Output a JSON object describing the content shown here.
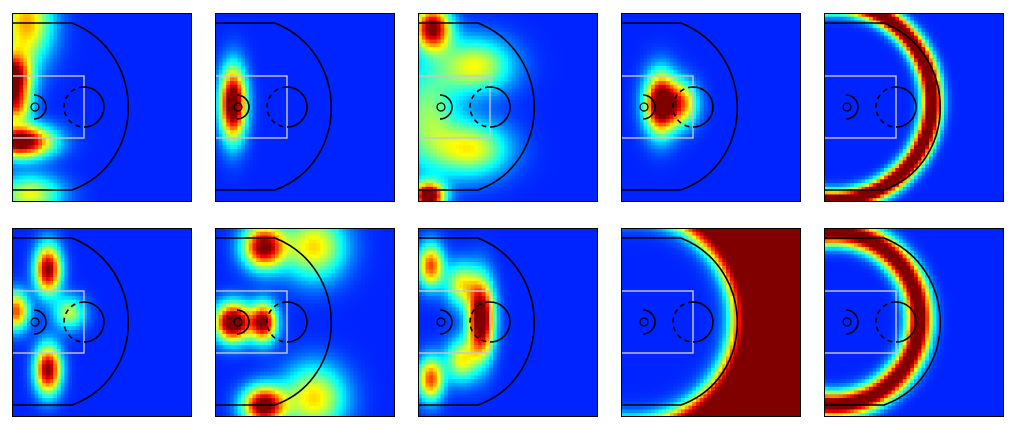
{
  "chart_data": {
    "type": "heatmap",
    "colormap": "jet",
    "layout": {
      "rows": 2,
      "cols": 5
    },
    "title": "",
    "xlabel": "",
    "ylabel": "",
    "axis_ticks": false,
    "grid": false,
    "court_overlay": {
      "three_point_arc_color": "#000000",
      "key_color": "#c8c8c8",
      "rim_color": "#000000"
    },
    "panels": [
      {
        "name": "",
        "blobs": [
          {
            "x": 0.0,
            "y": 0.35,
            "sx": 0.07,
            "sy": 0.09,
            "w": 0.95
          },
          {
            "x": 0.05,
            "y": 0.68,
            "sx": 0.12,
            "sy": 0.06,
            "w": 0.95
          },
          {
            "x": 0.08,
            "y": 0.05,
            "sx": 0.1,
            "sy": 0.15,
            "w": 0.55
          },
          {
            "x": 0.1,
            "y": 0.96,
            "sx": 0.12,
            "sy": 0.07,
            "w": 0.45
          },
          {
            "x": 0.02,
            "y": 0.5,
            "sx": 0.06,
            "sy": 0.06,
            "w": 0.45
          }
        ]
      },
      {
        "name": "",
        "blobs": [
          {
            "x": 0.1,
            "y": 0.48,
            "sx": 0.05,
            "sy": 0.13,
            "w": 1.0
          }
        ]
      },
      {
        "name": "",
        "blobs": [
          {
            "x": 0.08,
            "y": 0.08,
            "sx": 0.07,
            "sy": 0.08,
            "w": 0.85
          },
          {
            "x": 0.06,
            "y": 0.97,
            "sx": 0.06,
            "sy": 0.05,
            "w": 0.95
          },
          {
            "x": 0.32,
            "y": 0.28,
            "sx": 0.14,
            "sy": 0.1,
            "w": 0.45
          },
          {
            "x": 0.3,
            "y": 0.72,
            "sx": 0.14,
            "sy": 0.1,
            "w": 0.45
          },
          {
            "x": 0.05,
            "y": 0.55,
            "sx": 0.12,
            "sy": 0.2,
            "w": 0.35
          }
        ]
      },
      {
        "name": "",
        "blobs": [
          {
            "x": 0.22,
            "y": 0.48,
            "sx": 0.06,
            "sy": 0.11,
            "w": 1.0
          },
          {
            "x": 0.34,
            "y": 0.48,
            "sx": 0.06,
            "sy": 0.08,
            "w": 0.55
          }
        ]
      },
      {
        "name": "",
        "arc": {
          "cx": 0.05,
          "cy": 0.47,
          "r": 0.55,
          "width": 0.04,
          "w": 1.0
        }
      },
      {
        "name": "",
        "blobs": [
          {
            "x": 0.2,
            "y": 0.22,
            "sx": 0.05,
            "sy": 0.09,
            "w": 0.85
          },
          {
            "x": 0.2,
            "y": 0.75,
            "sx": 0.05,
            "sy": 0.09,
            "w": 0.85
          },
          {
            "x": 0.02,
            "y": 0.44,
            "sx": 0.05,
            "sy": 0.07,
            "w": 0.65
          },
          {
            "x": 0.32,
            "y": 0.45,
            "sx": 0.06,
            "sy": 0.06,
            "w": 0.4
          }
        ]
      },
      {
        "name": "",
        "blobs": [
          {
            "x": 0.1,
            "y": 0.5,
            "sx": 0.07,
            "sy": 0.07,
            "w": 1.0
          },
          {
            "x": 0.27,
            "y": 0.5,
            "sx": 0.05,
            "sy": 0.07,
            "w": 0.85
          },
          {
            "x": 0.27,
            "y": 0.1,
            "sx": 0.08,
            "sy": 0.08,
            "w": 0.85
          },
          {
            "x": 0.27,
            "y": 0.94,
            "sx": 0.08,
            "sy": 0.07,
            "w": 0.9
          },
          {
            "x": 0.55,
            "y": 0.1,
            "sx": 0.12,
            "sy": 0.12,
            "w": 0.5
          },
          {
            "x": 0.55,
            "y": 0.9,
            "sx": 0.12,
            "sy": 0.12,
            "w": 0.5
          }
        ]
      },
      {
        "name": "",
        "blobs": [
          {
            "x": 0.35,
            "y": 0.48,
            "sx": 0.05,
            "sy": 0.14,
            "w": 1.0
          },
          {
            "x": 0.07,
            "y": 0.2,
            "sx": 0.05,
            "sy": 0.08,
            "w": 0.65
          },
          {
            "x": 0.07,
            "y": 0.8,
            "sx": 0.05,
            "sy": 0.08,
            "w": 0.65
          },
          {
            "x": 0.24,
            "y": 0.3,
            "sx": 0.06,
            "sy": 0.08,
            "w": 0.45
          },
          {
            "x": 0.24,
            "y": 0.7,
            "sx": 0.06,
            "sy": 0.08,
            "w": 0.45
          }
        ]
      },
      {
        "name": "",
        "outside_arc": {
          "cx": 0.05,
          "cy": 0.48,
          "r": 0.58,
          "w": 1.0
        }
      },
      {
        "name": "",
        "arc": {
          "cx": 0.05,
          "cy": 0.48,
          "r": 0.48,
          "width": 0.05,
          "w": 0.95
        }
      }
    ]
  }
}
